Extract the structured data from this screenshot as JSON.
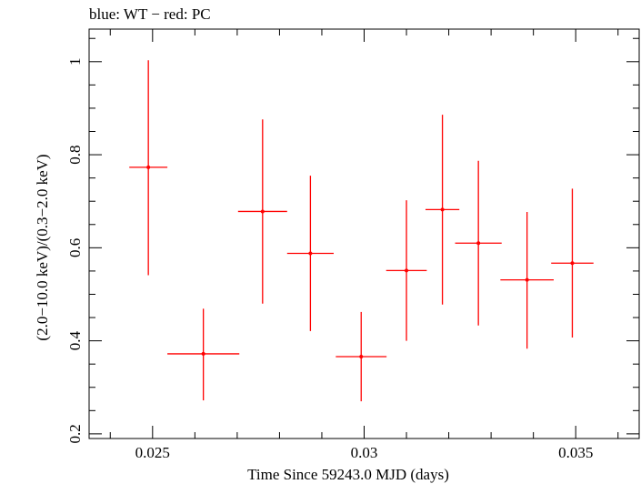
{
  "chart_data": {
    "type": "scatter",
    "title": "blue: WT − red: PC",
    "xlabel": "Time Since 59243.0 MJD (days)",
    "ylabel": "(2.0−10.0 keV)/(0.3−2.0 keV)",
    "xlim": [
      0.0235,
      0.0365
    ],
    "ylim": [
      0.19,
      1.07
    ],
    "x_ticks": [
      0.025,
      0.03,
      0.035
    ],
    "x_tick_labels": [
      "0.025",
      "0.03",
      "0.035"
    ],
    "y_ticks": [
      0.2,
      0.4,
      0.6,
      0.8,
      1.0
    ],
    "y_tick_labels": [
      "0.2",
      "0.4",
      "0.6",
      "0.8",
      "1"
    ],
    "x_minor_step": 0.001,
    "y_minor_step": 0.05,
    "grid": false,
    "series": [
      {
        "name": "PC",
        "color": "#ff0000",
        "points": [
          {
            "x": 0.0249,
            "xerr": 0.00045,
            "y": 0.773,
            "yerr_lo": 0.232,
            "yerr_hi": 0.23
          },
          {
            "x": 0.0262,
            "xerr": 0.00085,
            "y": 0.372,
            "yerr_lo": 0.1,
            "yerr_hi": 0.097
          },
          {
            "x": 0.0276,
            "xerr": 0.00058,
            "y": 0.678,
            "yerr_lo": 0.198,
            "yerr_hi": 0.198
          },
          {
            "x": 0.02873,
            "xerr": 0.00055,
            "y": 0.588,
            "yerr_lo": 0.167,
            "yerr_hi": 0.167
          },
          {
            "x": 0.02993,
            "xerr": 0.0006,
            "y": 0.366,
            "yerr_lo": 0.096,
            "yerr_hi": 0.096
          },
          {
            "x": 0.031,
            "xerr": 0.00048,
            "y": 0.551,
            "yerr_lo": 0.151,
            "yerr_hi": 0.151
          },
          {
            "x": 0.03185,
            "xerr": 0.0004,
            "y": 0.682,
            "yerr_lo": 0.204,
            "yerr_hi": 0.204
          },
          {
            "x": 0.0327,
            "xerr": 0.00055,
            "y": 0.61,
            "yerr_lo": 0.177,
            "yerr_hi": 0.177
          },
          {
            "x": 0.03385,
            "xerr": 0.00063,
            "y": 0.531,
            "yerr_lo": 0.148,
            "yerr_hi": 0.146
          },
          {
            "x": 0.03492,
            "xerr": 0.0005,
            "y": 0.567,
            "yerr_lo": 0.16,
            "yerr_hi": 0.16
          }
        ]
      }
    ]
  }
}
